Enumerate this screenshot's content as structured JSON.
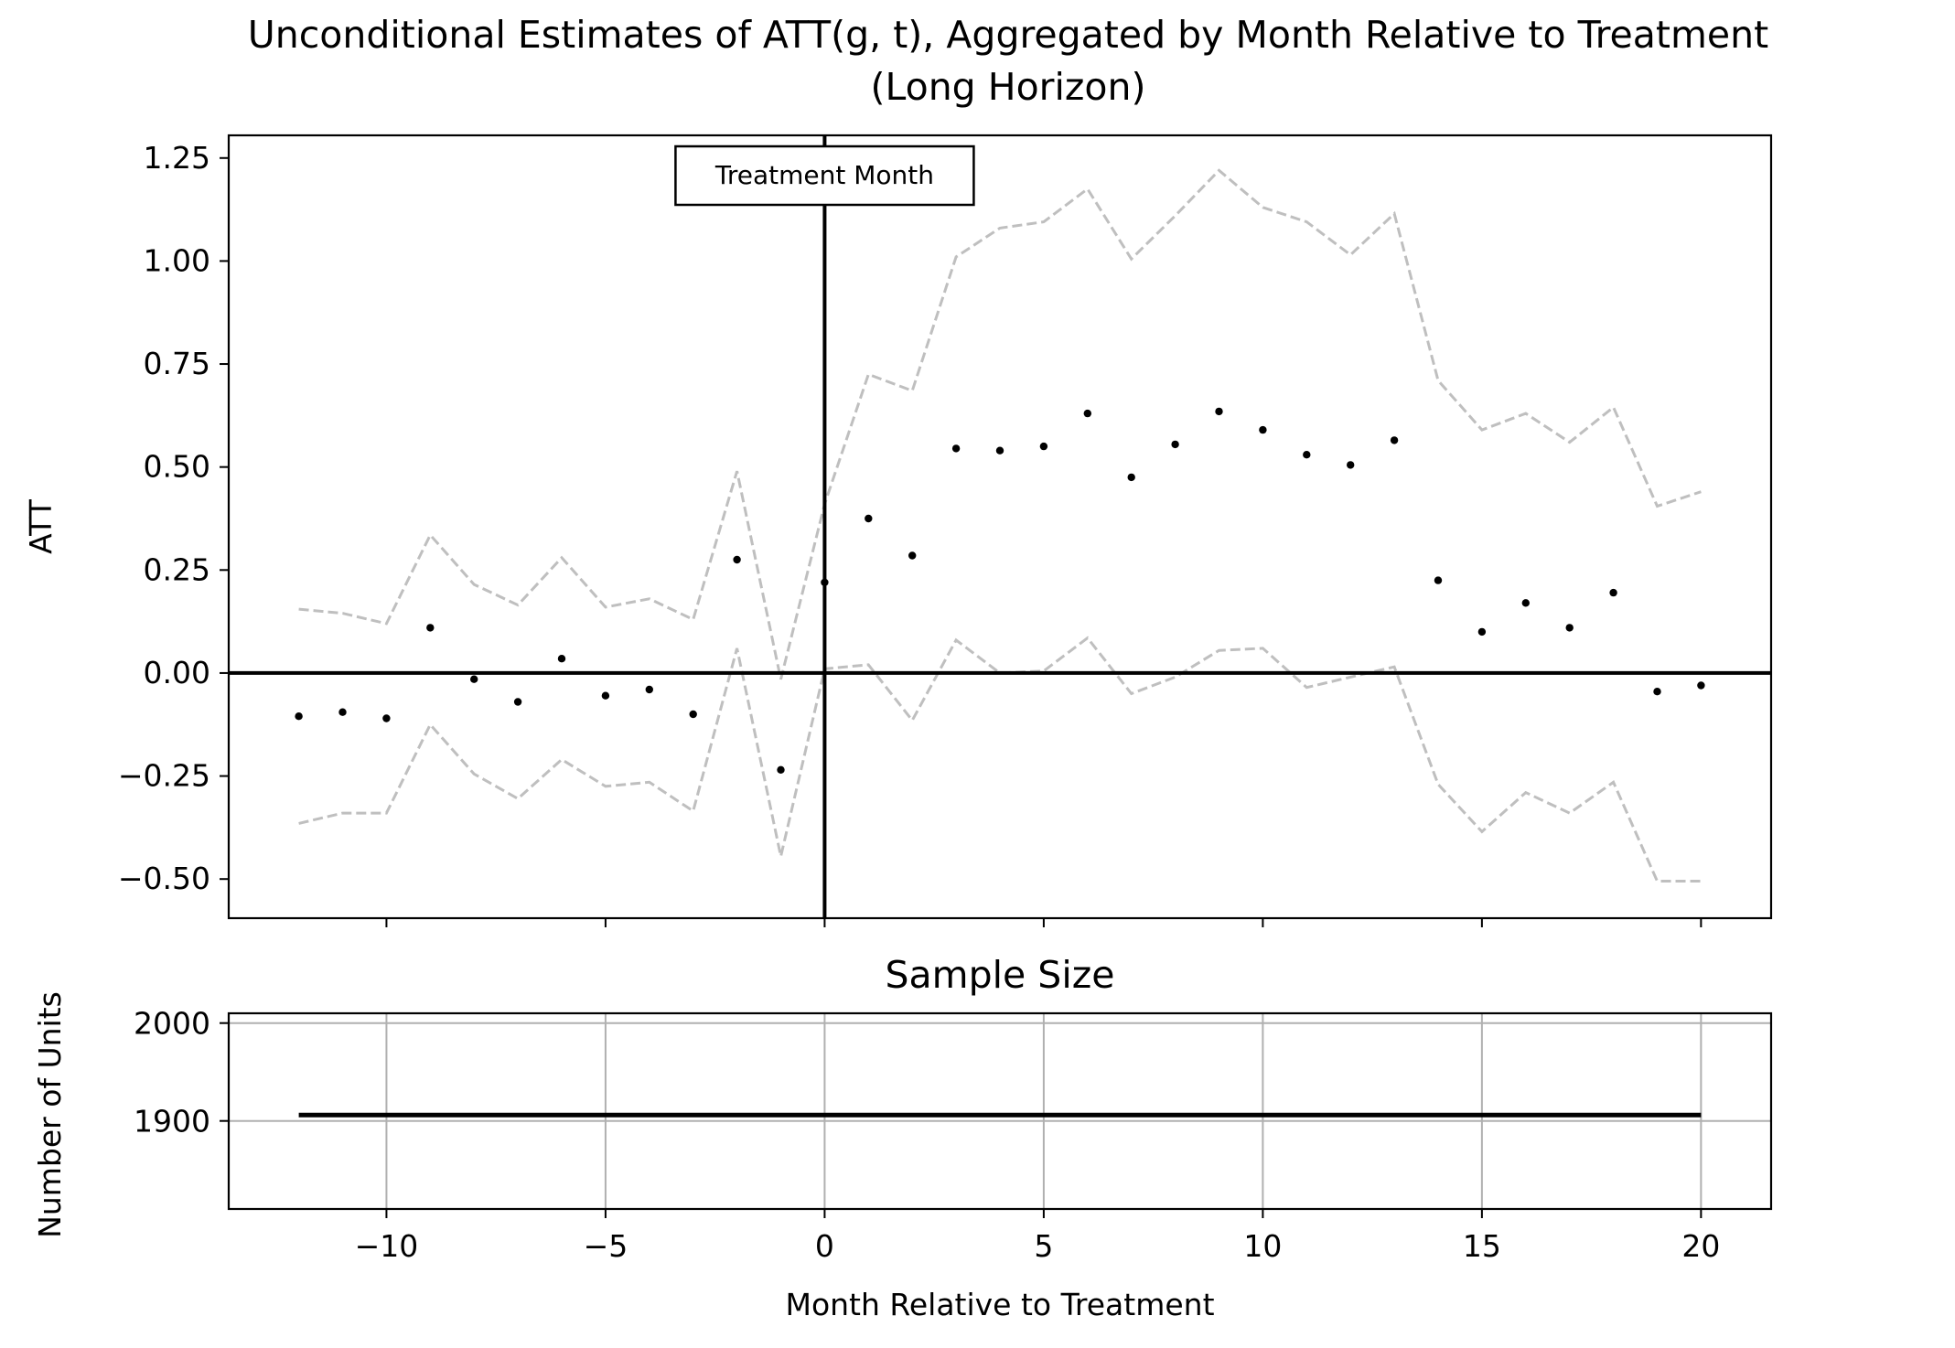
{
  "chart_data": [
    {
      "type": "scatter",
      "title": "Unconditional Estimates of ATT(g, t), Aggregated by Month Relative to Treatment",
      "subtitle": "(Long Horizon)",
      "ylabel": "ATT",
      "xlim": [
        -13.6,
        21.6
      ],
      "ylim": [
        -0.595,
        1.305
      ],
      "yticks": [
        -0.5,
        -0.25,
        0.0,
        0.25,
        0.5,
        0.75,
        1.0,
        1.25
      ],
      "ytick_labels": [
        "−0.50",
        "−0.25",
        "0.00",
        "0.25",
        "0.50",
        "0.75",
        "1.00",
        "1.25"
      ],
      "xticks": [
        -10,
        -5,
        0,
        5,
        10,
        15,
        20
      ],
      "show_xtick_labels": false,
      "grid": false,
      "reference_lines": {
        "horizontal_y": 0,
        "vertical_x": 0
      },
      "annotation": {
        "text": "Treatment Month",
        "x": 0
      },
      "x": [
        -12,
        -11,
        -10,
        -9,
        -8,
        -7,
        -6,
        -5,
        -4,
        -3,
        -2,
        -1,
        0,
        1,
        2,
        3,
        4,
        5,
        6,
        7,
        8,
        9,
        10,
        11,
        12,
        13,
        14,
        15,
        16,
        17,
        18,
        19,
        20
      ],
      "series": [
        {
          "role": "estimate",
          "style": "points",
          "color": "#000000",
          "values": [
            -0.105,
            -0.095,
            -0.11,
            0.11,
            -0.015,
            -0.07,
            0.035,
            -0.055,
            -0.04,
            -0.1,
            0.275,
            -0.235,
            0.22,
            0.375,
            0.285,
            0.545,
            0.54,
            0.55,
            0.63,
            0.475,
            0.555,
            0.635,
            0.59,
            0.53,
            0.505,
            0.565,
            0.225,
            0.1,
            0.17,
            0.11,
            0.195,
            -0.045,
            -0.03
          ]
        },
        {
          "role": "upper_band",
          "style": "dashed",
          "color": "#bfbfbf",
          "values": [
            0.155,
            0.145,
            0.12,
            0.335,
            0.215,
            0.165,
            0.28,
            0.16,
            0.18,
            0.13,
            0.49,
            -0.015,
            0.41,
            0.725,
            0.685,
            1.01,
            1.08,
            1.095,
            1.175,
            1.005,
            1.11,
            1.22,
            1.13,
            1.095,
            1.015,
            1.115,
            0.71,
            0.59,
            0.63,
            0.56,
            0.645,
            0.405,
            0.44
          ]
        },
        {
          "role": "lower_band",
          "style": "dashed",
          "color": "#bfbfbf",
          "values": [
            -0.365,
            -0.34,
            -0.34,
            -0.125,
            -0.245,
            -0.305,
            -0.21,
            -0.275,
            -0.265,
            -0.335,
            0.06,
            -0.445,
            0.01,
            0.02,
            -0.115,
            0.08,
            0.0,
            0.005,
            0.085,
            -0.05,
            -0.01,
            0.055,
            0.06,
            -0.035,
            -0.01,
            0.015,
            -0.27,
            -0.385,
            -0.29,
            -0.34,
            -0.265,
            -0.505,
            -0.505
          ]
        }
      ]
    },
    {
      "type": "line",
      "title": "Sample Size",
      "xlabel": "Month Relative to Treatment",
      "ylabel": "Number of Units",
      "xlim": [
        -13.6,
        21.6
      ],
      "ylim": [
        1810,
        2010
      ],
      "yticks": [
        1900,
        2000
      ],
      "ytick_labels": [
        "1900",
        "2000"
      ],
      "xticks": [
        -10,
        -5,
        0,
        5,
        10,
        15,
        20
      ],
      "xtick_labels": [
        "−10",
        "−5",
        "0",
        "5",
        "10",
        "15",
        "20"
      ],
      "grid": true,
      "grid_color": "#b0b0b0",
      "line_color": "#000000",
      "x": [
        -12,
        20
      ],
      "values": [
        1906,
        1906
      ]
    }
  ]
}
